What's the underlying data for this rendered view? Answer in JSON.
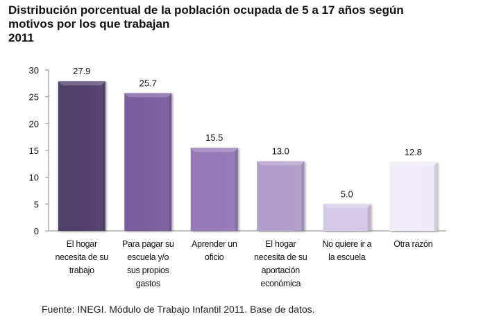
{
  "chart_data": {
    "type": "bar",
    "title": "Distribución porcentual de la población ocupada de 5 a 17 años según",
    "title_lines": [
      "Distribución porcentual de la población ocupada de 5 a 17 años según",
      "motivos por los que trabajan",
      "2011"
    ],
    "categories": [
      [
        "El hogar",
        "necesita de su",
        "trabajo"
      ],
      [
        "Para pagar su",
        "escuela y/o",
        "sus propios",
        "gastos"
      ],
      [
        "Aprender un",
        "oficio"
      ],
      [
        "El hogar",
        "necesita de su",
        "aportación",
        "económica"
      ],
      [
        "No quiere ir a",
        "la escuela"
      ],
      [
        "Otra razón"
      ]
    ],
    "values": [
      27.9,
      25.7,
      15.5,
      13.0,
      5.0,
      12.8
    ],
    "data_labels": [
      "27.9",
      "25.7",
      "15.5",
      "13.0",
      "5.0",
      "12.8"
    ],
    "colors": [
      "#4f3f6b",
      "#7a5f9e",
      "#9479b5",
      "#b19ecb",
      "#d4c9e6",
      "#f0ecf8"
    ],
    "xlabel": "",
    "ylabel": "",
    "ylim": [
      0,
      30
    ],
    "yticks": [
      0,
      5,
      10,
      15,
      20,
      25,
      30
    ],
    "grid": false,
    "legend": "none"
  },
  "source": "Fuente: INEGI. Módulo de Trabajo Infantil 2011. Base de datos."
}
